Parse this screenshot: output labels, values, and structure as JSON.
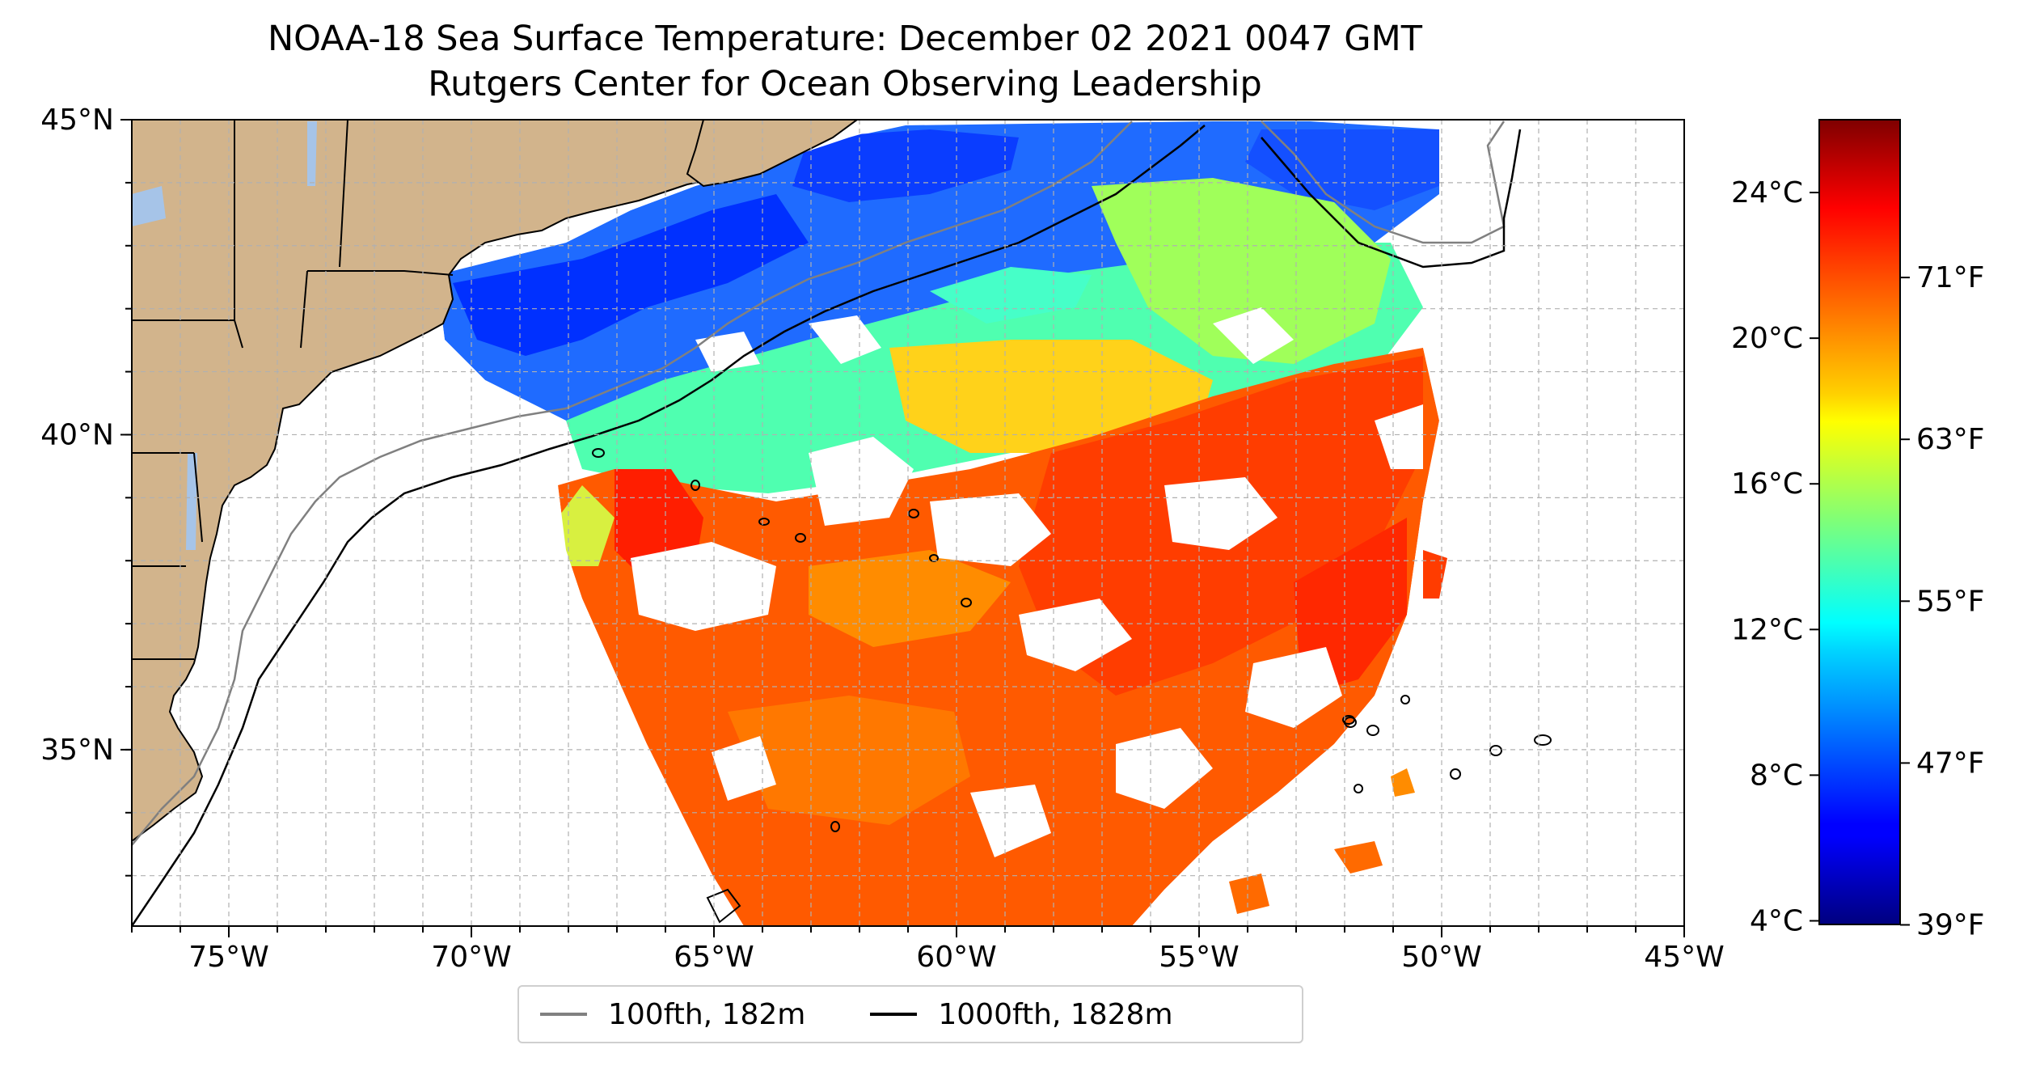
{
  "title": {
    "line1": "NOAA-18 Sea Surface Temperature: December 02 2021 0047 GMT",
    "line2": "Rutgers Center for Ocean Observing Leadership"
  },
  "map": {
    "extent": {
      "lon": [
        -77,
        -45
      ],
      "lat": [
        32.2,
        45
      ]
    },
    "lon_ticks": [
      {
        "value": -75,
        "label": "75°W"
      },
      {
        "value": -70,
        "label": "70°W"
      },
      {
        "value": -65,
        "label": "65°W"
      },
      {
        "value": -60,
        "label": "60°W"
      },
      {
        "value": -55,
        "label": "55°W"
      },
      {
        "value": -50,
        "label": "50°W"
      },
      {
        "value": -45,
        "label": "45°W"
      }
    ],
    "lat_ticks": [
      {
        "value": 45,
        "label": "45°N"
      },
      {
        "value": 40,
        "label": "40°N"
      },
      {
        "value": 35,
        "label": "35°N"
      }
    ],
    "grid": true,
    "colors": {
      "land": "#d2b48c",
      "lakes": "#a6c4e8",
      "contour_100fth": "#808080",
      "contour_1000fth": "#000000"
    }
  },
  "legend": {
    "placement": "bottom-center",
    "entries": [
      {
        "label": "100fth, 182m",
        "color": "#808080"
      },
      {
        "label": "1000fth, 1828m",
        "color": "#000000"
      }
    ]
  },
  "colorbar": {
    "colormap": "jet",
    "range_c": [
      3.9,
      26
    ],
    "celsius_ticks": [
      {
        "value": 4,
        "label": "4°C"
      },
      {
        "value": 8,
        "label": "8°C"
      },
      {
        "value": 12,
        "label": "12°C"
      },
      {
        "value": 16,
        "label": "16°C"
      },
      {
        "value": 20,
        "label": "20°C"
      },
      {
        "value": 24,
        "label": "24°C"
      }
    ],
    "fahrenheit_ticks": [
      {
        "value": 39,
        "label": "39°F"
      },
      {
        "value": 47,
        "label": "47°F"
      },
      {
        "value": 55,
        "label": "55°F"
      },
      {
        "value": 63,
        "label": "63°F"
      },
      {
        "value": 71,
        "label": "71°F"
      }
    ]
  }
}
